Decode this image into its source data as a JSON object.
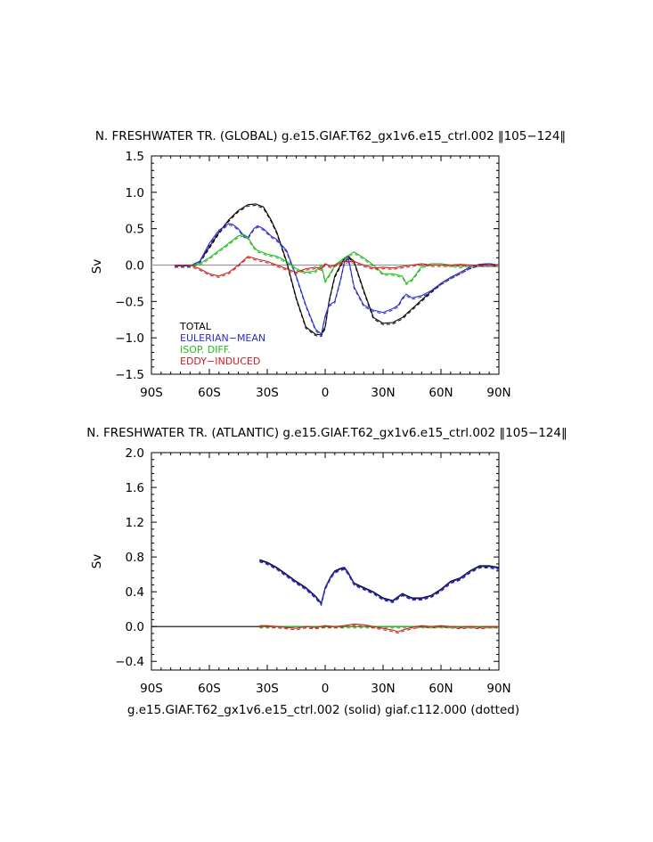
{
  "chart_data": [
    {
      "type": "line",
      "title": "N. FRESHWATER TR. (GLOBAL) g.e15.GIAF.T62_gx1v6.e15_ctrl.002 ‖105−124‖",
      "xlabel": "",
      "ylabel": "Sv",
      "xlim": [
        -90,
        90
      ],
      "ylim": [
        -1.5,
        1.5
      ],
      "xticks": [
        -90,
        -60,
        -30,
        0,
        30,
        60,
        90
      ],
      "xtick_labels": [
        "90S",
        "60S",
        "30S",
        "0",
        "30N",
        "60N",
        "90N"
      ],
      "yticks": [
        -1.5,
        -1.0,
        -0.5,
        0.0,
        0.5,
        1.0,
        1.5
      ],
      "ytick_labels": [
        "−1.5",
        "−1.0",
        "−0.5",
        "0.0",
        "0.5",
        "1.0",
        "1.5"
      ],
      "zero_line_color": "#9a9a9a",
      "legend": [
        {
          "label": "TOTAL",
          "color": "#000000"
        },
        {
          "label": "EULERIAN−MEAN",
          "color": "#2d2dc8"
        },
        {
          "label": "ISOP. DIFF.",
          "color": "#22bb22"
        },
        {
          "label": "EDDY−INDUCED",
          "color": "#c81e1e"
        }
      ],
      "series": [
        {
          "name": "TOTAL",
          "color": "#000000",
          "x": [
            -78,
            -70,
            -65,
            -60,
            -55,
            -50,
            -45,
            -40,
            -36,
            -32,
            -28,
            -25,
            -20,
            -15,
            -10,
            -5,
            -2,
            0,
            2,
            5,
            10,
            12,
            15,
            20,
            25,
            30,
            35,
            40,
            45,
            50,
            55,
            60,
            65,
            70,
            75,
            80,
            85,
            90
          ],
          "y": [
            -0.01,
            -0.01,
            0.05,
            0.25,
            0.45,
            0.62,
            0.75,
            0.83,
            0.84,
            0.8,
            0.62,
            0.45,
            0.05,
            -0.45,
            -0.85,
            -0.95,
            -0.96,
            -0.85,
            -0.5,
            -0.15,
            0.1,
            0.12,
            0.05,
            -0.35,
            -0.72,
            -0.8,
            -0.79,
            -0.72,
            -0.6,
            -0.48,
            -0.36,
            -0.25,
            -0.17,
            -0.1,
            -0.03,
            0.01,
            0.02,
            0.0
          ]
        },
        {
          "name": "EULERIAN−MEAN",
          "color": "#2d2dc8",
          "x": [
            -78,
            -70,
            -65,
            -60,
            -55,
            -50,
            -48,
            -45,
            -42,
            -40,
            -37,
            -35,
            -32,
            -28,
            -25,
            -20,
            -15,
            -10,
            -5,
            -2,
            0,
            2,
            5,
            8,
            10,
            12,
            15,
            20,
            25,
            30,
            35,
            38,
            40,
            42,
            45,
            50,
            55,
            60,
            65,
            70,
            75,
            80,
            85,
            90
          ],
          "y": [
            -0.01,
            -0.01,
            0.05,
            0.3,
            0.48,
            0.57,
            0.56,
            0.5,
            0.4,
            0.38,
            0.5,
            0.54,
            0.5,
            0.4,
            0.35,
            0.2,
            -0.15,
            -0.55,
            -0.88,
            -0.95,
            -0.7,
            -0.55,
            -0.5,
            -0.2,
            0.05,
            0.1,
            -0.3,
            -0.55,
            -0.62,
            -0.65,
            -0.6,
            -0.55,
            -0.45,
            -0.4,
            -0.45,
            -0.42,
            -0.35,
            -0.25,
            -0.17,
            -0.1,
            -0.03,
            0.01,
            0.02,
            0.0
          ]
        },
        {
          "name": "ISOP. DIFF.",
          "color": "#22bb22",
          "x": [
            -78,
            -70,
            -65,
            -60,
            -55,
            -50,
            -45,
            -42,
            -40,
            -37,
            -35,
            -30,
            -25,
            -20,
            -15,
            -10,
            -5,
            -2,
            0,
            3,
            5,
            10,
            15,
            20,
            25,
            30,
            35,
            40,
            42,
            45,
            50,
            55,
            60,
            65,
            70,
            75,
            80,
            85,
            90
          ],
          "y": [
            0.0,
            0.0,
            0.02,
            0.1,
            0.2,
            0.3,
            0.4,
            0.42,
            0.38,
            0.25,
            0.2,
            0.15,
            0.12,
            0.05,
            -0.05,
            -0.1,
            -0.08,
            0.0,
            -0.22,
            -0.1,
            0.0,
            0.1,
            0.18,
            0.1,
            0.0,
            -0.12,
            -0.12,
            -0.15,
            -0.25,
            -0.2,
            -0.02,
            0.02,
            0.02,
            0.0,
            -0.02,
            0.0,
            0.0,
            0.0,
            0.0
          ]
        },
        {
          "name": "EDDY−INDUCED",
          "color": "#c81e1e",
          "x": [
            -78,
            -70,
            -65,
            -60,
            -55,
            -50,
            -45,
            -40,
            -35,
            -30,
            -25,
            -20,
            -15,
            -10,
            -5,
            -2,
            0,
            3,
            5,
            10,
            15,
            20,
            25,
            30,
            35,
            40,
            45,
            50,
            55,
            60,
            65,
            70,
            75,
            80,
            85,
            90
          ],
          "y": [
            0.0,
            0.0,
            -0.05,
            -0.12,
            -0.15,
            -0.1,
            0.0,
            0.12,
            0.08,
            0.05,
            0.0,
            -0.05,
            -0.1,
            -0.05,
            -0.03,
            -0.05,
            0.02,
            -0.02,
            0.0,
            0.05,
            0.05,
            0.0,
            -0.04,
            -0.03,
            -0.04,
            -0.02,
            0.0,
            0.02,
            0.0,
            0.0,
            0.0,
            0.01,
            0.0,
            0.0,
            0.0,
            0.0
          ]
        }
      ]
    },
    {
      "type": "line",
      "title": "N. FRESHWATER TR. (ATLANTIC) g.e15.GIAF.T62_gx1v6.e15_ctrl.002 ‖105−124‖",
      "xlabel": "g.e15.GIAF.T62_gx1v6.e15_ctrl.002 (solid) giaf.c112.000 (dotted)",
      "ylabel": "Sv",
      "xlim": [
        -90,
        90
      ],
      "ylim": [
        -0.5,
        2.0
      ],
      "xticks": [
        -90,
        -60,
        -30,
        0,
        30,
        60,
        90
      ],
      "xtick_labels": [
        "90S",
        "60S",
        "30S",
        "0",
        "30N",
        "60N",
        "90N"
      ],
      "yticks": [
        -0.4,
        0.0,
        0.4,
        0.8,
        1.2,
        1.6,
        2.0
      ],
      "ytick_labels": [
        "−0.4",
        "0.0",
        "0.4",
        "0.8",
        "1.2",
        "1.6",
        "2.0"
      ],
      "zero_line_color": "#000000",
      "series": [
        {
          "name": "TOTAL",
          "color": "#000000",
          "x": [
            -34,
            -30,
            -25,
            -20,
            -15,
            -10,
            -5,
            -2,
            0,
            3,
            5,
            8,
            10,
            12,
            15,
            20,
            25,
            30,
            35,
            40,
            42,
            45,
            50,
            55,
            60,
            65,
            70,
            75,
            80,
            85,
            90
          ],
          "y": [
            0.77,
            0.74,
            0.68,
            0.6,
            0.52,
            0.45,
            0.35,
            0.27,
            0.45,
            0.58,
            0.64,
            0.67,
            0.68,
            0.62,
            0.5,
            0.45,
            0.4,
            0.33,
            0.3,
            0.38,
            0.36,
            0.33,
            0.33,
            0.36,
            0.43,
            0.52,
            0.56,
            0.64,
            0.7,
            0.7,
            0.68
          ]
        },
        {
          "name": "EULERIAN−MEAN",
          "color": "#2d2dc8",
          "x": [
            -34,
            -30,
            -25,
            -20,
            -15,
            -10,
            -5,
            -2,
            0,
            3,
            5,
            8,
            10,
            12,
            15,
            20,
            25,
            30,
            35,
            40,
            42,
            45,
            50,
            55,
            60,
            65,
            70,
            75,
            80,
            85,
            90
          ],
          "y": [
            0.76,
            0.73,
            0.67,
            0.59,
            0.51,
            0.44,
            0.34,
            0.26,
            0.44,
            0.57,
            0.63,
            0.66,
            0.67,
            0.61,
            0.49,
            0.44,
            0.39,
            0.32,
            0.29,
            0.37,
            0.35,
            0.32,
            0.32,
            0.35,
            0.42,
            0.51,
            0.55,
            0.63,
            0.69,
            0.69,
            0.67
          ]
        },
        {
          "name": "ISOP. DIFF.",
          "color": "#22bb22",
          "x": [
            -34,
            -20,
            -10,
            0,
            10,
            20,
            30,
            40,
            50,
            60,
            70,
            80,
            90
          ],
          "y": [
            0.0,
            0.0,
            0.0,
            0.0,
            0.0,
            0.0,
            0.0,
            0.0,
            0.0,
            0.0,
            0.0,
            0.0,
            0.0
          ]
        },
        {
          "name": "EDDY−INDUCED",
          "color": "#c81e1e",
          "x": [
            -34,
            -30,
            -25,
            -20,
            -15,
            -10,
            -5,
            0,
            5,
            10,
            15,
            20,
            25,
            30,
            35,
            38,
            40,
            45,
            50,
            55,
            60,
            65,
            70,
            75,
            80,
            85,
            90
          ],
          "y": [
            0.01,
            0.01,
            0.0,
            -0.01,
            -0.02,
            0.0,
            -0.01,
            0.01,
            0.0,
            0.01,
            0.03,
            0.02,
            0.0,
            -0.02,
            -0.04,
            -0.06,
            -0.04,
            -0.01,
            0.01,
            0.0,
            0.01,
            0.0,
            -0.01,
            0.0,
            -0.01,
            0.0,
            0.0
          ]
        }
      ]
    }
  ]
}
